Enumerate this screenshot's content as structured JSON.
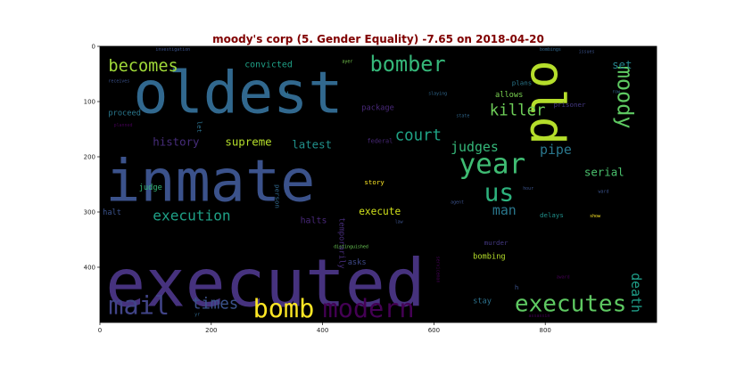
{
  "chart_data": {
    "type": "wordcloud",
    "title": "moody's corp (5. Gender Equality) -7.65 on 2018-04-20",
    "title_color": "#800000",
    "background": "#000000",
    "xlim": [
      0,
      1000
    ],
    "ylim": [
      500,
      0
    ],
    "x_ticks": [
      0,
      200,
      400,
      600,
      800
    ],
    "y_ticks": [
      0,
      100,
      200,
      300,
      400
    ],
    "words": [
      {
        "text": "oldest",
        "x": 60,
        "y": 120,
        "size": 105,
        "color": "#31688e",
        "rotate": false
      },
      {
        "text": "inmate",
        "x": 10,
        "y": 280,
        "size": 105,
        "color": "#3b528b",
        "rotate": false
      },
      {
        "text": "executed",
        "x": 10,
        "y": 470,
        "size": 120,
        "color": "#46327e",
        "rotate": false
      },
      {
        "text": "old",
        "x": 775,
        "y": 25,
        "size": 85,
        "color": "#b5de2b",
        "rotate": true
      },
      {
        "text": "bomber",
        "x": 485,
        "y": 45,
        "size": 38,
        "color": "#35b779",
        "rotate": false
      },
      {
        "text": "becomes",
        "x": 15,
        "y": 45,
        "size": 30,
        "color": "#a0da39",
        "rotate": false
      },
      {
        "text": "year",
        "x": 645,
        "y": 230,
        "size": 50,
        "color": "#3fbc73",
        "rotate": false
      },
      {
        "text": "us",
        "x": 690,
        "y": 280,
        "size": 45,
        "color": "#2db27d",
        "rotate": false
      },
      {
        "text": "moody",
        "x": 930,
        "y": 35,
        "size": 38,
        "color": "#5ec962",
        "rotate": true
      },
      {
        "text": "killer",
        "x": 700,
        "y": 125,
        "size": 28,
        "color": "#6ece58",
        "rotate": false
      },
      {
        "text": "court",
        "x": 530,
        "y": 170,
        "size": 28,
        "color": "#20a486",
        "rotate": false
      },
      {
        "text": "judges",
        "x": 630,
        "y": 190,
        "size": 24,
        "color": "#35b779",
        "rotate": false
      },
      {
        "text": "pipe",
        "x": 790,
        "y": 195,
        "size": 24,
        "color": "#2a788e",
        "rotate": false
      },
      {
        "text": "serial",
        "x": 870,
        "y": 235,
        "size": 20,
        "color": "#4ac16d",
        "rotate": false
      },
      {
        "text": "set",
        "x": 920,
        "y": 40,
        "size": 20,
        "color": "#25858e",
        "rotate": false
      },
      {
        "text": "execution",
        "x": 95,
        "y": 315,
        "size": 26,
        "color": "#1fa187",
        "rotate": false
      },
      {
        "text": "history",
        "x": 95,
        "y": 180,
        "size": 20,
        "color": "#472d7b",
        "rotate": false
      },
      {
        "text": "supreme",
        "x": 225,
        "y": 180,
        "size": 20,
        "color": "#b5de2b",
        "rotate": false
      },
      {
        "text": "latest",
        "x": 345,
        "y": 185,
        "size": 20,
        "color": "#21918c",
        "rotate": false
      },
      {
        "text": "convicted",
        "x": 260,
        "y": 38,
        "size": 16,
        "color": "#1fa187",
        "rotate": false
      },
      {
        "text": "u",
        "x": 330,
        "y": 90,
        "size": 16,
        "color": "#2c728e",
        "rotate": false
      },
      {
        "text": "mail",
        "x": 15,
        "y": 485,
        "size": 46,
        "color": "#414487",
        "rotate": false
      },
      {
        "text": "times",
        "x": 165,
        "y": 475,
        "size": 28,
        "color": "#3b528b",
        "rotate": false
      },
      {
        "text": "bomb",
        "x": 275,
        "y": 490,
        "size": 46,
        "color": "#fde725",
        "rotate": false
      },
      {
        "text": "modern",
        "x": 400,
        "y": 490,
        "size": 46,
        "color": "#440154",
        "rotate": false
      },
      {
        "text": "executes",
        "x": 745,
        "y": 480,
        "size": 42,
        "color": "#5ec962",
        "rotate": false
      },
      {
        "text": "man",
        "x": 705,
        "y": 305,
        "size": 24,
        "color": "#2a788e",
        "rotate": false
      },
      {
        "text": "death",
        "x": 955,
        "y": 410,
        "size": 24,
        "color": "#1f9e89",
        "rotate": true
      },
      {
        "text": "execute",
        "x": 465,
        "y": 305,
        "size": 18,
        "color": "#d2e21b",
        "rotate": false
      },
      {
        "text": "halts",
        "x": 360,
        "y": 320,
        "size": 16,
        "color": "#482878",
        "rotate": false
      },
      {
        "text": "halt",
        "x": 5,
        "y": 305,
        "size": 14,
        "color": "#3b528b",
        "rotate": false
      },
      {
        "text": "judge",
        "x": 70,
        "y": 260,
        "size": 14,
        "color": "#35b779",
        "rotate": false
      },
      {
        "text": "story",
        "x": 475,
        "y": 250,
        "size": 12,
        "color": "#fde725",
        "rotate": false
      },
      {
        "text": "temporarily",
        "x": 430,
        "y": 310,
        "size": 14,
        "color": "#472d7b",
        "rotate": true
      },
      {
        "text": "package",
        "x": 470,
        "y": 115,
        "size": 14,
        "color": "#482878",
        "rotate": false
      },
      {
        "text": "allows",
        "x": 710,
        "y": 92,
        "size": 14,
        "color": "#7ad151",
        "rotate": false
      },
      {
        "text": "plans",
        "x": 740,
        "y": 70,
        "size": 12,
        "color": "#2a788e",
        "rotate": false
      },
      {
        "text": "prisoner",
        "x": 815,
        "y": 110,
        "size": 12,
        "color": "#443983",
        "rotate": false
      },
      {
        "text": "proceed",
        "x": 15,
        "y": 125,
        "size": 14,
        "color": "#2a788e",
        "rotate": false
      },
      {
        "text": "delays",
        "x": 790,
        "y": 310,
        "size": 12,
        "color": "#21918c",
        "rotate": false
      },
      {
        "text": "asks",
        "x": 445,
        "y": 395,
        "size": 14,
        "color": "#3e4989",
        "rotate": false
      },
      {
        "text": "bombing",
        "x": 670,
        "y": 385,
        "size": 14,
        "color": "#b5de2b",
        "rotate": false
      },
      {
        "text": "murder",
        "x": 690,
        "y": 360,
        "size": 12,
        "color": "#443983",
        "rotate": false
      },
      {
        "text": "stay",
        "x": 670,
        "y": 465,
        "size": 14,
        "color": "#2c728e",
        "rotate": false
      },
      {
        "text": "let",
        "x": 175,
        "y": 135,
        "size": 12,
        "color": "#2c728e",
        "rotate": true
      },
      {
        "text": "person",
        "x": 315,
        "y": 250,
        "size": 12,
        "color": "#31688e",
        "rotate": true
      },
      {
        "text": "federal",
        "x": 480,
        "y": 175,
        "size": 11,
        "color": "#482878",
        "rotate": false
      },
      {
        "text": "investigation",
        "x": 100,
        "y": 8,
        "size": 8,
        "color": "#3b528b",
        "rotate": false
      },
      {
        "text": "bombings",
        "x": 790,
        "y": 8,
        "size": 8,
        "color": "#31688e",
        "rotate": false
      },
      {
        "text": "issues",
        "x": 860,
        "y": 12,
        "size": 8,
        "color": "#3b528b",
        "rotate": false
      },
      {
        "text": "ayer",
        "x": 435,
        "y": 30,
        "size": 8,
        "color": "#7ad151",
        "rotate": false
      },
      {
        "text": "receives",
        "x": 15,
        "y": 65,
        "size": 8,
        "color": "#3b528b",
        "rotate": false
      },
      {
        "text": "planned",
        "x": 25,
        "y": 145,
        "size": 8,
        "color": "#440154",
        "rotate": false
      },
      {
        "text": "slaying",
        "x": 590,
        "y": 88,
        "size": 8,
        "color": "#31688e",
        "rotate": false
      },
      {
        "text": "state",
        "x": 640,
        "y": 128,
        "size": 8,
        "color": "#31688e",
        "rotate": false
      },
      {
        "text": "row",
        "x": 920,
        "y": 85,
        "size": 8,
        "color": "#31688e",
        "rotate": false
      },
      {
        "text": "hour",
        "x": 760,
        "y": 260,
        "size": 8,
        "color": "#3b528b",
        "rotate": false
      },
      {
        "text": "ward",
        "x": 895,
        "y": 265,
        "size": 8,
        "color": "#3b528b",
        "rotate": false
      },
      {
        "text": "agent",
        "x": 630,
        "y": 285,
        "size": 8,
        "color": "#3b528b",
        "rotate": false
      },
      {
        "text": "show",
        "x": 880,
        "y": 310,
        "size": 8,
        "color": "#fde725",
        "rotate": false
      },
      {
        "text": "distinguished",
        "x": 420,
        "y": 365,
        "size": 8,
        "color": "#6ece58",
        "rotate": false
      },
      {
        "text": "serviceman",
        "x": 605,
        "y": 380,
        "size": 8,
        "color": "#440154",
        "rotate": true
      },
      {
        "text": "award",
        "x": 820,
        "y": 420,
        "size": 8,
        "color": "#440154",
        "rotate": false
      },
      {
        "text": "assassin",
        "x": 770,
        "y": 490,
        "size": 8,
        "color": "#440154",
        "rotate": false
      },
      {
        "text": "yr",
        "x": 170,
        "y": 488,
        "size": 8,
        "color": "#31688e",
        "rotate": false
      },
      {
        "text": "h",
        "x": 745,
        "y": 440,
        "size": 12,
        "color": "#3b528b",
        "rotate": false
      },
      {
        "text": "law",
        "x": 530,
        "y": 320,
        "size": 8,
        "color": "#3b528b",
        "rotate": false
      }
    ]
  }
}
